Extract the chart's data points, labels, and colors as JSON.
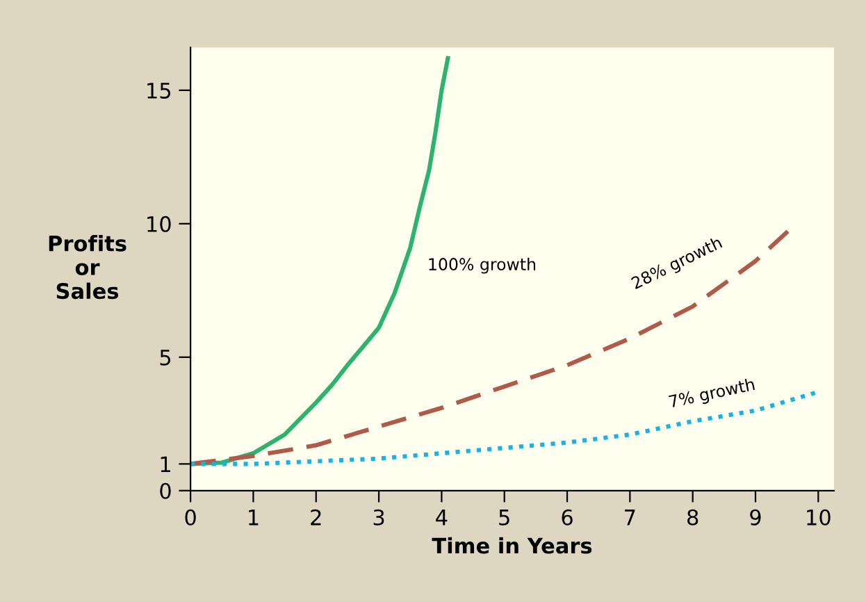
{
  "chart_data": {
    "type": "line",
    "xlabel": "Time in Years",
    "ylabel": "Profits\nor\nSales",
    "xlim": [
      0,
      10.25
    ],
    "ylim": [
      0,
      16.6
    ],
    "xticks": [
      0,
      1,
      2,
      3,
      4,
      5,
      6,
      7,
      8,
      9,
      10
    ],
    "yticks": [
      0,
      1,
      5,
      10,
      15
    ],
    "grid": false,
    "legend": false,
    "series": [
      {
        "color": "#2db36f",
        "line_style": "solid",
        "x": [
          0,
          0.5,
          1,
          1.5,
          2,
          2.25,
          2.5,
          2.75,
          3,
          3.25,
          3.5,
          3.65,
          3.8,
          3.9,
          4,
          4.1
        ],
        "values": [
          1,
          1.05,
          1.4,
          2.1,
          3.3,
          3.95,
          4.7,
          5.4,
          6.1,
          7.4,
          9.1,
          10.6,
          12,
          13.4,
          15,
          16.2
        ]
      },
      {
        "color": "#b05a4a",
        "line_style": "dashed",
        "x": [
          0,
          1,
          2,
          3,
          4,
          5,
          6,
          7,
          8,
          9,
          9.6
        ],
        "values": [
          1,
          1.3,
          1.7,
          2.4,
          3.1,
          3.9,
          4.7,
          5.7,
          6.9,
          8.6,
          9.9
        ]
      },
      {
        "color": "#1ab0e8",
        "line_style": "dotted",
        "x": [
          0,
          1,
          2,
          3,
          4,
          5,
          6,
          7,
          8,
          9,
          10
        ],
        "values": [
          1,
          1.0,
          1.1,
          1.2,
          1.4,
          1.6,
          1.8,
          2.1,
          2.6,
          3.0,
          3.7
        ]
      }
    ],
    "annotations": [
      "100% growth",
      "28% growth",
      "7% growth"
    ]
  }
}
